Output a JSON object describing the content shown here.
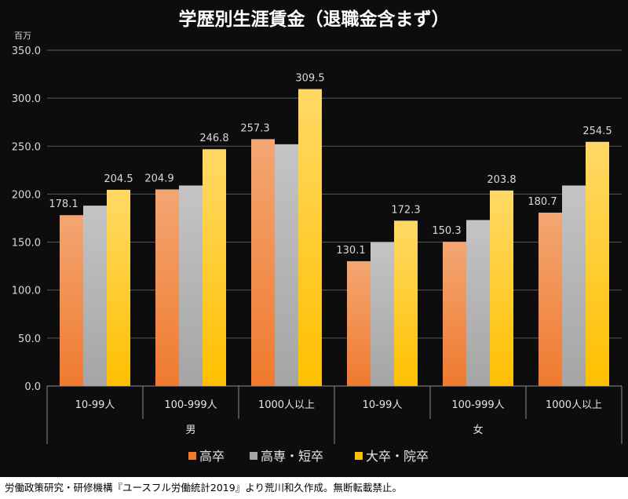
{
  "chart_data": {
    "type": "bar",
    "title": "学歴別生涯賃金（退職金含まず）",
    "unit": "百万",
    "ylim": [
      0,
      350
    ],
    "yticks": [
      "0.0",
      "50.0",
      "100.0",
      "150.0",
      "200.0",
      "250.0",
      "300.0",
      "350.0"
    ],
    "grid": true,
    "legend_position": "bottom",
    "groups": [
      {
        "label": "男",
        "categories": [
          "10-99人",
          "100-999人",
          "1000人以上"
        ]
      },
      {
        "label": "女",
        "categories": [
          "10-99人",
          "100-999人",
          "1000人以上"
        ]
      }
    ],
    "series": [
      {
        "name": "高卒",
        "color": "#f07a2e",
        "values": [
          178.1,
          204.9,
          257.3,
          130.1,
          150.3,
          180.7
        ],
        "labels": [
          "178.1",
          "204.9",
          "257.3",
          "130.1",
          "150.3",
          "180.7"
        ]
      },
      {
        "name": "高専・短卒",
        "color": "#a5a5a5",
        "values": [
          188,
          209,
          252,
          150,
          173,
          209
        ],
        "labels": []
      },
      {
        "name": "大卒・院卒",
        "color": "#ffc000",
        "values": [
          204.5,
          246.8,
          309.5,
          172.3,
          203.8,
          254.5
        ],
        "labels": [
          "204.5",
          "246.8",
          "309.5",
          "172.3",
          "203.8",
          "254.5"
        ]
      }
    ]
  },
  "footer": {
    "source": "労働政策研究・研修機構『ユースフル労働統計2019』より荒川和久作成。無断転載禁止。"
  }
}
